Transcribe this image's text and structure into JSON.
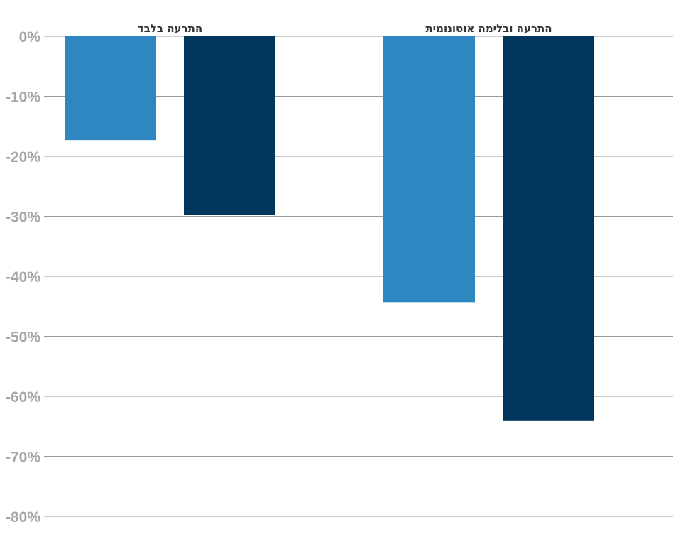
{
  "chart_data": {
    "type": "bar",
    "categories": [
      "התרעה בלבד",
      "התרעה ובלימה אוטונומית"
    ],
    "series": [
      {
        "color": "#2f87c2",
        "values": [
          -17.3,
          -44.3
        ]
      },
      {
        "color": "#00365c",
        "values": [
          -29.8,
          -64.0
        ]
      }
    ],
    "yticks": [
      "0%",
      "-10%",
      "-20%",
      "-30%",
      "-40%",
      "-50%",
      "-60%",
      "-70%",
      "-80%"
    ],
    "ylim": [
      -80,
      0
    ],
    "grid": true,
    "legend": "none"
  }
}
